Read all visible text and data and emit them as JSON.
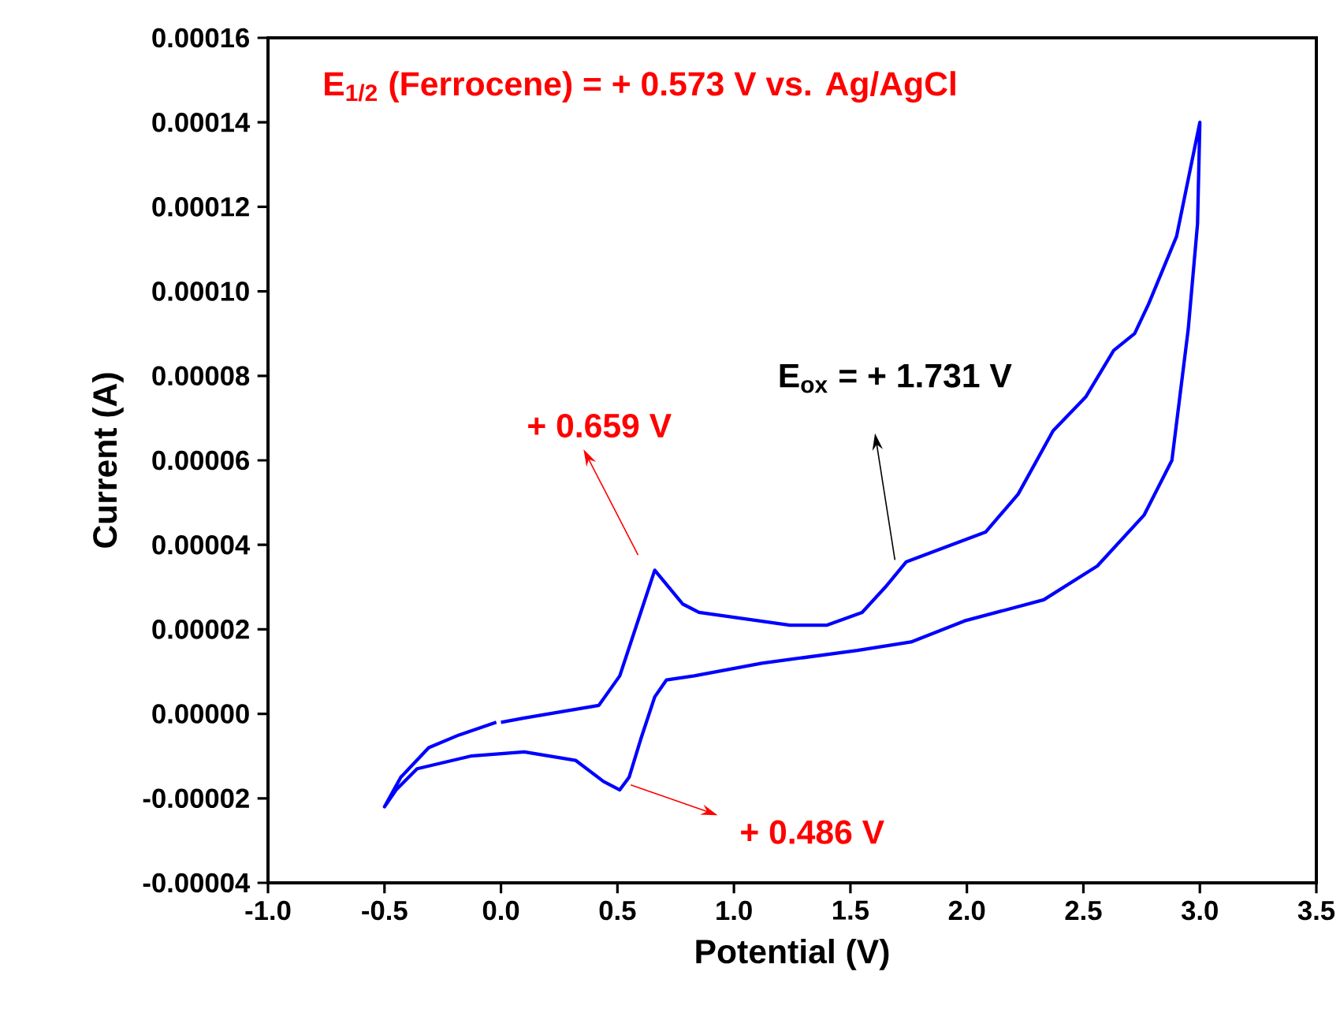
{
  "chart_data": {
    "type": "line",
    "xlabel": "Potential (V)",
    "ylabel": "Current (A)",
    "x": [
      0.0,
      0.1,
      0.42,
      0.51,
      0.6,
      0.66,
      0.78,
      0.85,
      1.24,
      1.4,
      1.55,
      1.65,
      1.74,
      2.08,
      2.22,
      2.37,
      2.51,
      2.63,
      2.72,
      2.78,
      2.9,
      3.0,
      2.99,
      2.95,
      2.88,
      2.76,
      2.56,
      2.33,
      1.99,
      1.76,
      1.53,
      1.12,
      0.83,
      0.71,
      0.66,
      0.6,
      0.55,
      0.51,
      0.44,
      0.32,
      0.1,
      -0.13,
      -0.36,
      -0.45,
      -0.5,
      -0.43,
      -0.31,
      -0.18,
      -0.02
    ],
    "series": [
      {
        "color": "#0000ff",
        "values": [
          -2e-06,
          -1e-06,
          2e-06,
          9e-06,
          2.4e-05,
          3.4e-05,
          2.6e-05,
          2.4e-05,
          2.1e-05,
          2.1e-05,
          2.4e-05,
          3e-05,
          3.6e-05,
          4.3e-05,
          5.2e-05,
          6.7e-05,
          7.5e-05,
          8.6e-05,
          9e-05,
          9.7e-05,
          0.000113,
          0.00014,
          0.000116,
          9.1e-05,
          6e-05,
          4.7e-05,
          3.5e-05,
          2.7e-05,
          2.2e-05,
          1.7e-05,
          1.5e-05,
          1.2e-05,
          9e-06,
          8e-06,
          4e-06,
          -6e-06,
          -1.5e-05,
          -1.8e-05,
          -1.6e-05,
          -1.1e-05,
          -9e-06,
          -1e-05,
          -1.3e-05,
          -1.8e-05,
          -2.2e-05,
          -1.5e-05,
          -8e-06,
          -5e-06,
          -2e-06
        ]
      }
    ],
    "xlim": [
      -1.0,
      3.5
    ],
    "ylim": [
      -4e-05,
      0.00016
    ],
    "xticks": [
      {
        "value": -1.0,
        "label": "-1.0"
      },
      {
        "value": -0.5,
        "label": "-0.5"
      },
      {
        "value": 0,
        "label": "0.0"
      },
      {
        "value": 0.5,
        "label": "0.5"
      },
      {
        "value": 1.0,
        "label": "1.0"
      },
      {
        "value": 1.5,
        "label": "1.5"
      },
      {
        "value": 2.0,
        "label": "2.0"
      },
      {
        "value": 2.5,
        "label": "2.5"
      },
      {
        "value": 3.0,
        "label": "3.0"
      },
      {
        "value": 3.5,
        "label": "3.5"
      }
    ],
    "yticks": [
      {
        "value": -4e-05,
        "label": "-0.00004"
      },
      {
        "value": -2e-05,
        "label": "-0.00002"
      },
      {
        "value": 0,
        "label": "0.00000"
      },
      {
        "value": 2e-05,
        "label": "0.00002"
      },
      {
        "value": 4e-05,
        "label": "0.00004"
      },
      {
        "value": 6e-05,
        "label": "0.00006"
      },
      {
        "value": 8e-05,
        "label": "0.00008"
      },
      {
        "value": 0.0001,
        "label": "0.00010"
      },
      {
        "value": 0.00012,
        "label": "0.00012"
      },
      {
        "value": 0.00014,
        "label": "0.00014"
      },
      {
        "value": 0.00016,
        "label": "0.00016"
      }
    ],
    "annotations": [
      "E$_{1/2}$ (Ferrocene) = + 0.573 V vs. Ag/AgCl",
      "+ 0.659 V",
      "+ 0.486 V",
      "E$_{ox}$ =  + 1.731 V"
    ],
    "grid": false,
    "marker": "none",
    "line_style": "solid"
  }
}
